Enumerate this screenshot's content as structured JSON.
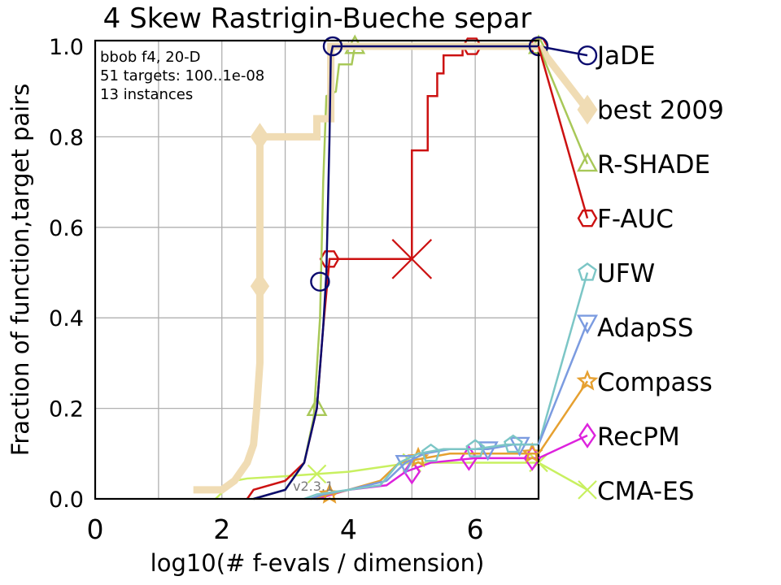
{
  "chart_data": {
    "type": "line",
    "title": "4 Skew Rastrigin-Bueche separ",
    "xlabel": "log10(# f-evals / dimension)",
    "ylabel": "Fraction of function,target pairs",
    "xlim": [
      0,
      7
    ],
    "ylim": [
      0,
      1
    ],
    "x_ticks": [
      "0",
      "2",
      "4",
      "6"
    ],
    "y_ticks": [
      "0.0",
      "0.2",
      "0.4",
      "0.6",
      "0.8",
      "1.0"
    ],
    "grid": true,
    "legend_position": "right",
    "annotations": [
      "bbob f4, 20-D",
      "51 targets: 100..1e-08",
      "13 instances"
    ],
    "version_label": "v2.3.1",
    "series": [
      {
        "name": "JaDE",
        "color": "#0b0b6e",
        "marker": "circle",
        "linewidth": 2.5,
        "points": [
          [
            2.5,
            0
          ],
          [
            3.0,
            0.02
          ],
          [
            3.3,
            0.08
          ],
          [
            3.5,
            0.2
          ],
          [
            3.6,
            0.38
          ],
          [
            3.65,
            0.5
          ],
          [
            3.7,
            0.8
          ],
          [
            3.72,
            0.98
          ],
          [
            3.75,
            1.0
          ],
          [
            7.0,
            1.0
          ]
        ],
        "markers": [
          [
            3.55,
            0.48
          ],
          [
            3.75,
            1.0
          ],
          [
            7.0,
            1.0
          ]
        ],
        "legend_end": 0.98
      },
      {
        "name": "best 2009",
        "color": "#f0dcb4",
        "marker": "diamond",
        "linewidth": 9,
        "points": [
          [
            1.55,
            0.02
          ],
          [
            2.0,
            0.02
          ],
          [
            2.2,
            0.04
          ],
          [
            2.3,
            0.06
          ],
          [
            2.4,
            0.08
          ],
          [
            2.5,
            0.12
          ],
          [
            2.55,
            0.2
          ],
          [
            2.6,
            0.3
          ],
          [
            2.6,
            0.8
          ],
          [
            3.5,
            0.8
          ],
          [
            3.5,
            0.84
          ],
          [
            3.72,
            0.84
          ],
          [
            3.72,
            1.0
          ],
          [
            7.0,
            1.0
          ]
        ],
        "markers": [
          [
            2.6,
            0.47
          ],
          [
            2.6,
            0.8
          ]
        ],
        "legend_end": 0.86
      },
      {
        "name": "R-SHADE",
        "color": "#a8c858",
        "marker": "triangle-up",
        "linewidth": 2.5,
        "points": [
          [
            2.5,
            0
          ],
          [
            3.0,
            0.02
          ],
          [
            3.3,
            0.08
          ],
          [
            3.45,
            0.18
          ],
          [
            3.55,
            0.4
          ],
          [
            3.6,
            0.7
          ],
          [
            3.65,
            0.89
          ],
          [
            3.8,
            0.9
          ],
          [
            3.85,
            0.96
          ],
          [
            4.05,
            0.96
          ],
          [
            4.1,
            1.0
          ],
          [
            7.0,
            1.0
          ]
        ],
        "markers": [
          [
            3.5,
            0.2
          ],
          [
            4.1,
            1.0
          ],
          [
            7.0,
            1.0
          ]
        ],
        "legend_end": 0.74
      },
      {
        "name": "F-AUC",
        "color": "#cc1111",
        "marker": "hexagon",
        "linewidth": 2.5,
        "points": [
          [
            2.4,
            0
          ],
          [
            2.5,
            0.02
          ],
          [
            3.0,
            0.04
          ],
          [
            3.3,
            0.08
          ],
          [
            3.5,
            0.2
          ],
          [
            3.6,
            0.38
          ],
          [
            3.7,
            0.53
          ],
          [
            5.0,
            0.53
          ],
          [
            5.0,
            0.77
          ],
          [
            5.25,
            0.77
          ],
          [
            5.25,
            0.89
          ],
          [
            5.4,
            0.89
          ],
          [
            5.4,
            0.94
          ],
          [
            5.5,
            0.94
          ],
          [
            5.5,
            0.98
          ],
          [
            5.8,
            0.98
          ],
          [
            5.8,
            1.0
          ],
          [
            7.0,
            1.0
          ]
        ],
        "markers": [
          [
            3.7,
            0.53
          ],
          [
            5.95,
            1.0
          ],
          [
            7.0,
            1.0
          ]
        ],
        "cross": [
          5.0,
          0.53
        ],
        "legend_end": 0.62
      },
      {
        "name": "UFW",
        "color": "#7cc6c6",
        "marker": "pentagon",
        "linewidth": 2.5,
        "points": [
          [
            3.3,
            0
          ],
          [
            3.5,
            0.01
          ],
          [
            4.0,
            0.02
          ],
          [
            4.5,
            0.03
          ],
          [
            4.8,
            0.08
          ],
          [
            5.1,
            0.1
          ],
          [
            5.5,
            0.11
          ],
          [
            6.0,
            0.11
          ],
          [
            6.5,
            0.12
          ],
          [
            7.0,
            0.12
          ]
        ],
        "markers": [
          [
            5.3,
            0.1
          ],
          [
            6.0,
            0.11
          ],
          [
            6.6,
            0.12
          ]
        ],
        "legend_end": 0.5
      },
      {
        "name": "AdapSS",
        "color": "#7b9be0",
        "marker": "triangle-down",
        "linewidth": 2.5,
        "points": [
          [
            3.4,
            0
          ],
          [
            3.6,
            0.01
          ],
          [
            4.0,
            0.02
          ],
          [
            4.6,
            0.04
          ],
          [
            4.9,
            0.08
          ],
          [
            5.2,
            0.1
          ],
          [
            5.6,
            0.11
          ],
          [
            6.2,
            0.11
          ],
          [
            6.6,
            0.12
          ],
          [
            7.0,
            0.12
          ]
        ],
        "markers": [
          [
            4.9,
            0.08
          ],
          [
            6.2,
            0.11
          ],
          [
            6.7,
            0.12
          ]
        ],
        "legend_end": 0.39
      },
      {
        "name": "Compass",
        "color": "#e6a030",
        "marker": "star",
        "linewidth": 2.5,
        "points": [
          [
            3.4,
            0
          ],
          [
            3.7,
            0.01
          ],
          [
            4.0,
            0.02
          ],
          [
            4.5,
            0.04
          ],
          [
            4.8,
            0.08
          ],
          [
            5.2,
            0.09
          ],
          [
            5.6,
            0.1
          ],
          [
            6.2,
            0.1
          ],
          [
            7.0,
            0.1
          ]
        ],
        "markers": [
          [
            3.7,
            0.01
          ],
          [
            5.1,
            0.09
          ],
          [
            6.9,
            0.1
          ]
        ],
        "legend_end": 0.26
      },
      {
        "name": "RecPM",
        "color": "#dd22dd",
        "marker": "diamond",
        "linewidth": 2.5,
        "points": [
          [
            3.5,
            0
          ],
          [
            4.0,
            0.02
          ],
          [
            4.6,
            0.03
          ],
          [
            4.9,
            0.06
          ],
          [
            5.3,
            0.08
          ],
          [
            6.0,
            0.09
          ],
          [
            7.0,
            0.09
          ]
        ],
        "markers": [
          [
            5.0,
            0.06
          ],
          [
            5.9,
            0.09
          ],
          [
            6.9,
            0.09
          ]
        ],
        "legend_end": 0.14
      },
      {
        "name": "CMA-ES",
        "color": "#c8f060",
        "marker": "x",
        "linewidth": 2.5,
        "points": [
          [
            1.9,
            0
          ],
          [
            2.2,
            0.04
          ],
          [
            2.4,
            0.045
          ],
          [
            3.0,
            0.05
          ],
          [
            3.5,
            0.055
          ],
          [
            4.0,
            0.06
          ],
          [
            4.5,
            0.07
          ],
          [
            5.0,
            0.08
          ],
          [
            6.0,
            0.08
          ],
          [
            7.0,
            0.08
          ]
        ],
        "markers": [
          [
            3.5,
            0.055
          ],
          [
            5.0,
            0.08
          ],
          [
            7.0,
            0.08
          ]
        ],
        "legend_end": 0.02
      }
    ]
  }
}
